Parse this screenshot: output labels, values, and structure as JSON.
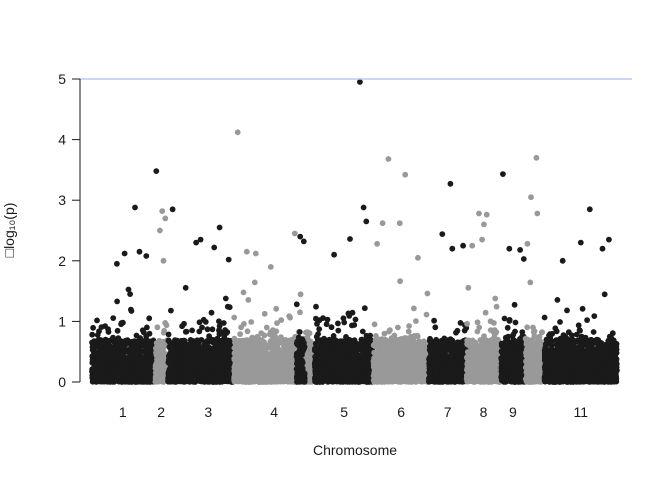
{
  "chart_data": {
    "type": "scatter",
    "title": "",
    "xlabel": "Chromosome",
    "ylabel": "□log₁₀(p)",
    "ylim": [
      0,
      5
    ],
    "yticks": [
      "0",
      "1",
      "2",
      "3",
      "4",
      "5"
    ],
    "threshold": {
      "y": 5,
      "color": "#b8c8ef"
    },
    "colors": {
      "odd": "#1a1a1a",
      "even": "#999999"
    },
    "chromosomes": [
      {
        "label": "1",
        "x_range": [
          0.0,
          1.36
        ],
        "color": "odd",
        "labeled": true,
        "peaks": [
          {
            "x": 0.95,
            "y": 2.88
          },
          {
            "x": 1.05,
            "y": 2.15
          },
          {
            "x": 0.72,
            "y": 2.12
          },
          {
            "x": 1.2,
            "y": 2.08
          },
          {
            "x": 0.55,
            "y": 1.95
          }
        ]
      },
      {
        "label": "2",
        "x_range": [
          1.4,
          1.66
        ],
        "color": "even",
        "labeled": true,
        "peaks": [
          {
            "x": 1.55,
            "y": 2.82
          },
          {
            "x": 1.62,
            "y": 2.7
          },
          {
            "x": 1.5,
            "y": 2.5
          },
          {
            "x": 1.58,
            "y": 2.0
          }
        ]
      },
      {
        "label": "",
        "x_range": [
          1.68,
          2.0
        ],
        "color": "odd",
        "labeled": false,
        "peaks": [
          {
            "x": 1.42,
            "y": 3.48
          },
          {
            "x": 1.78,
            "y": 2.85
          }
        ]
      },
      {
        "label": "3",
        "x_range": [
          2.02,
          3.12
        ],
        "color": "odd",
        "labeled": true,
        "peaks": [
          {
            "x": 2.82,
            "y": 2.55
          },
          {
            "x": 2.4,
            "y": 2.35
          },
          {
            "x": 2.3,
            "y": 2.3
          },
          {
            "x": 2.7,
            "y": 2.22
          },
          {
            "x": 3.02,
            "y": 2.02
          }
        ]
      },
      {
        "label": "4",
        "x_range": [
          3.14,
          4.91
        ],
        "color": "even",
        "labeled": true,
        "peaks": [
          {
            "x": 3.22,
            "y": 4.12
          },
          {
            "x": 3.42,
            "y": 2.15
          },
          {
            "x": 3.62,
            "y": 2.12
          },
          {
            "x": 4.48,
            "y": 2.45
          },
          {
            "x": 3.95,
            "y": 1.9
          }
        ]
      },
      {
        "label": "",
        "x_range": [
          4.52,
          4.7
        ],
        "color": "odd",
        "labeled": false,
        "peaks": [
          {
            "x": 4.6,
            "y": 2.4
          },
          {
            "x": 4.68,
            "y": 2.32
          }
        ]
      },
      {
        "label": "5",
        "x_range": [
          4.92,
          6.22
        ],
        "color": "odd",
        "labeled": true,
        "peaks": [
          {
            "x": 5.92,
            "y": 4.95
          },
          {
            "x": 6.0,
            "y": 2.88
          },
          {
            "x": 6.06,
            "y": 2.65
          },
          {
            "x": 5.7,
            "y": 2.36
          },
          {
            "x": 5.35,
            "y": 2.1
          }
        ]
      },
      {
        "label": "6",
        "x_range": [
          6.22,
          7.44
        ],
        "color": "even",
        "labeled": true,
        "peaks": [
          {
            "x": 6.55,
            "y": 3.68
          },
          {
            "x": 6.92,
            "y": 3.42
          },
          {
            "x": 6.3,
            "y": 2.28
          },
          {
            "x": 6.42,
            "y": 2.62
          },
          {
            "x": 6.8,
            "y": 2.62
          },
          {
            "x": 7.2,
            "y": 2.05
          }
        ]
      },
      {
        "label": "7",
        "x_range": [
          7.44,
          8.28
        ],
        "color": "odd",
        "labeled": true,
        "peaks": [
          {
            "x": 7.92,
            "y": 3.27
          },
          {
            "x": 7.74,
            "y": 2.44
          },
          {
            "x": 7.96,
            "y": 2.2
          },
          {
            "x": 8.2,
            "y": 2.25
          }
        ]
      },
      {
        "label": "8",
        "x_range": [
          8.28,
          9.02
        ],
        "color": "even",
        "labeled": true,
        "peaks": [
          {
            "x": 8.55,
            "y": 2.78
          },
          {
            "x": 8.72,
            "y": 2.76
          },
          {
            "x": 8.66,
            "y": 2.6
          },
          {
            "x": 8.62,
            "y": 2.35
          },
          {
            "x": 8.4,
            "y": 2.25
          }
        ]
      },
      {
        "label": "9",
        "x_range": [
          9.04,
          9.56
        ],
        "color": "odd",
        "labeled": true,
        "peaks": [
          {
            "x": 9.08,
            "y": 3.43
          },
          {
            "x": 9.22,
            "y": 2.2
          },
          {
            "x": 9.46,
            "y": 2.18
          },
          {
            "x": 9.54,
            "y": 2.03
          }
        ]
      },
      {
        "label": "",
        "x_range": [
          9.58,
          9.98
        ],
        "color": "even",
        "labeled": false,
        "peaks": [
          {
            "x": 9.82,
            "y": 3.7
          },
          {
            "x": 9.7,
            "y": 3.05
          },
          {
            "x": 9.84,
            "y": 2.78
          },
          {
            "x": 9.62,
            "y": 2.28
          }
        ]
      },
      {
        "label": "11",
        "x_range": [
          10.0,
          11.6
        ],
        "color": "odd",
        "labeled": true,
        "peaks": [
          {
            "x": 11.0,
            "y": 2.85
          },
          {
            "x": 11.42,
            "y": 2.35
          },
          {
            "x": 10.8,
            "y": 2.3
          },
          {
            "x": 11.28,
            "y": 2.2
          },
          {
            "x": 10.4,
            "y": 2.0
          }
        ]
      }
    ]
  }
}
